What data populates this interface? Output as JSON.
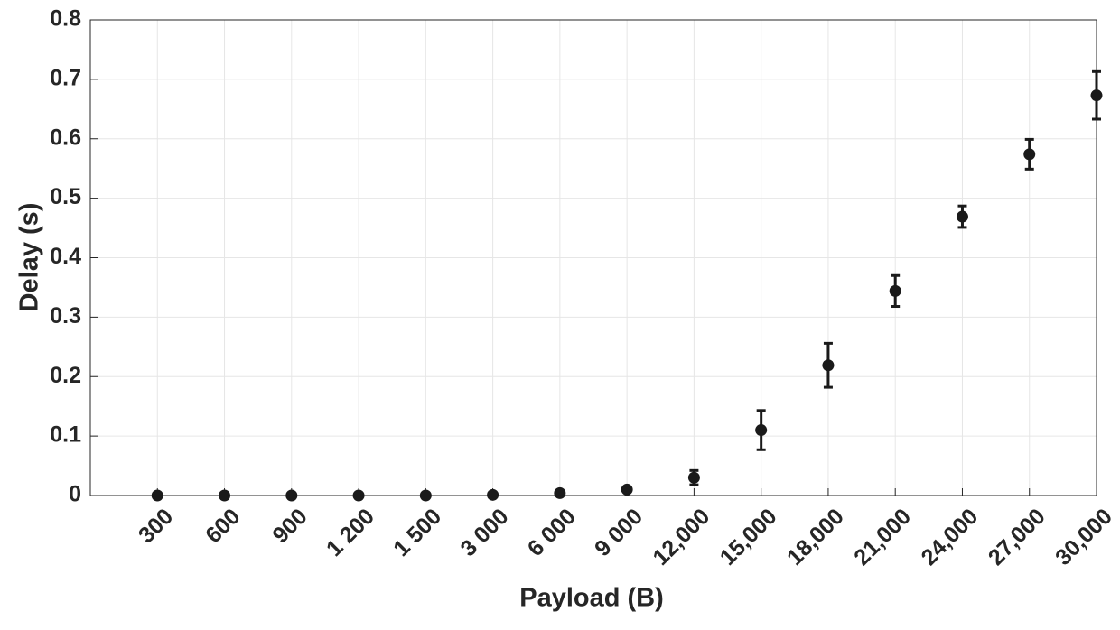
{
  "chart_data": {
    "type": "errorbar",
    "xlabel": "Payload (B)",
    "ylabel": "Delay (s)",
    "categories": [
      "300",
      "600",
      "900",
      "1 200",
      "1 500",
      "3 000",
      "6 000",
      "9 000",
      "12,000",
      "15,000",
      "18,000",
      "21,000",
      "24,000",
      "27,000",
      "30,000"
    ],
    "values": [
      0,
      0,
      0,
      0,
      0,
      0.001,
      0.004,
      0.01,
      0.03,
      0.11,
      0.219,
      0.344,
      0.469,
      0.574,
      0.673
    ],
    "errors": [
      0.001,
      0.001,
      0.001,
      0.001,
      0.001,
      0.001,
      0.002,
      0.002,
      0.012,
      0.033,
      0.037,
      0.026,
      0.018,
      0.025,
      0.04
    ],
    "color": "#1a1a1a",
    "ylim": [
      0,
      0.8
    ],
    "yticks": [
      0,
      0.1,
      0.2,
      0.3,
      0.4,
      0.5,
      0.6,
      0.7,
      0.8
    ],
    "grid": true
  }
}
